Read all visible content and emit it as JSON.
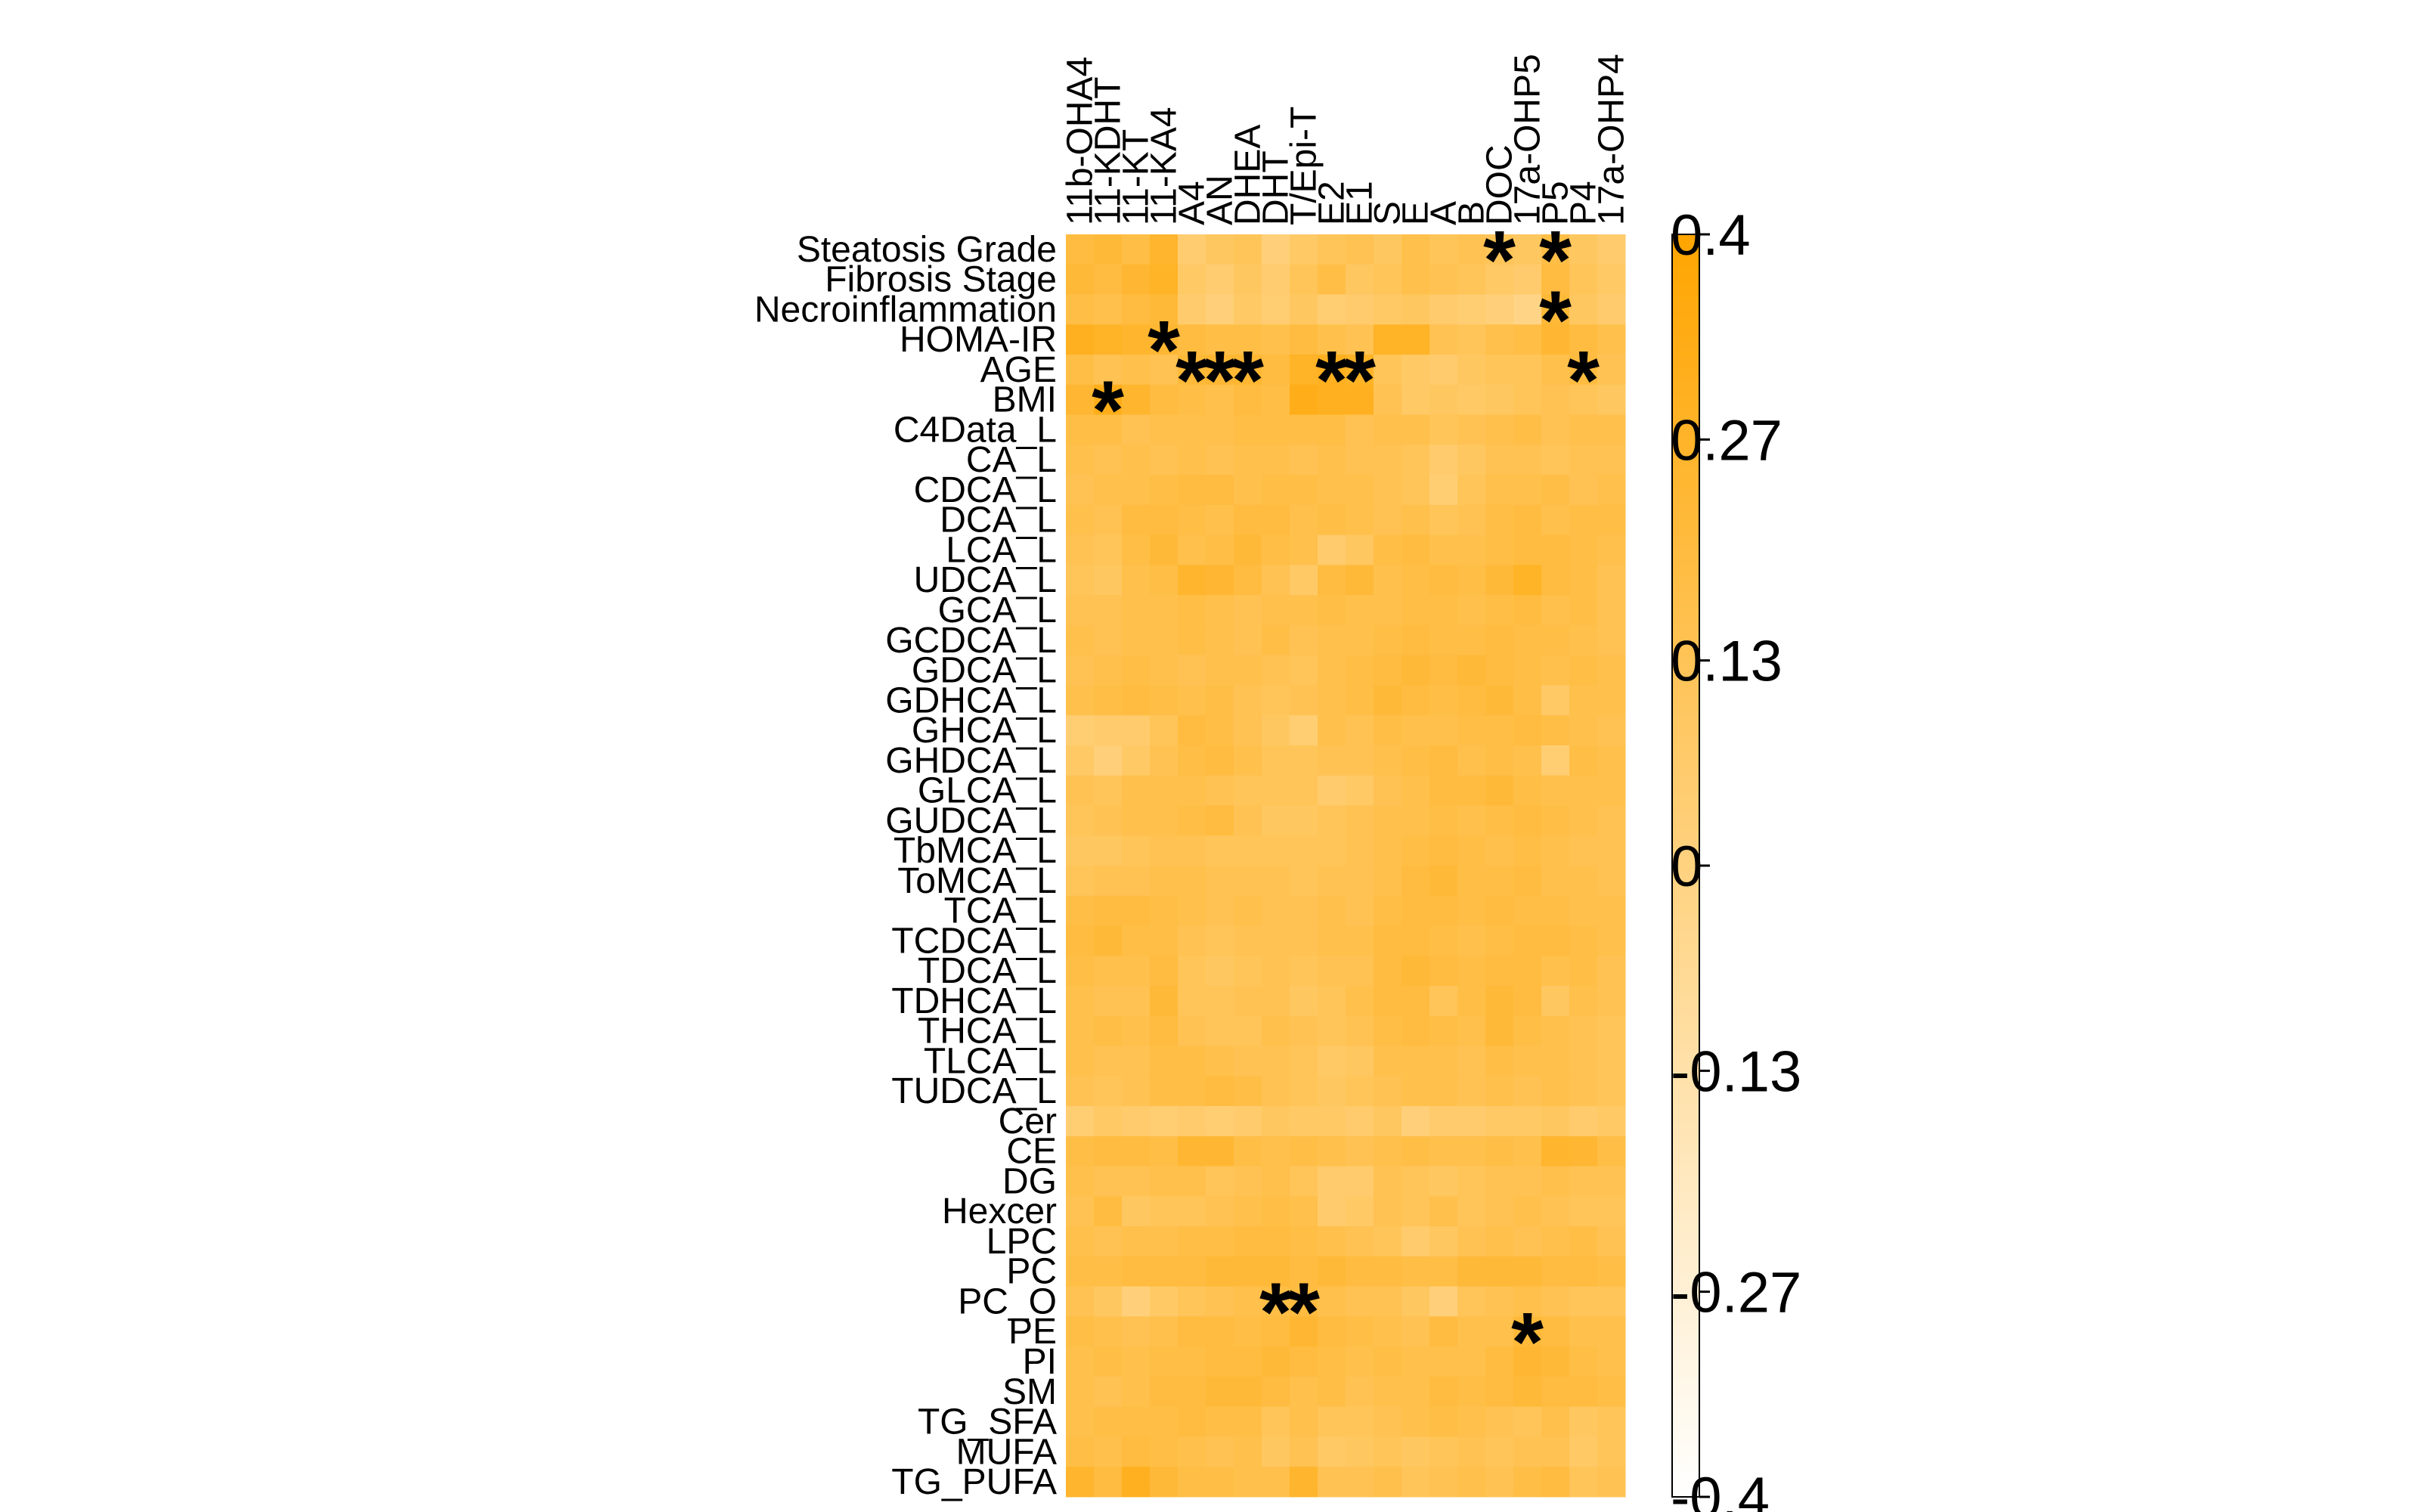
{
  "chart_data": {
    "type": "heatmap",
    "title": "",
    "rows": [
      "Steatosis Grade",
      "Fibrosis Stage",
      "Necroinflammation",
      "HOMA-IR",
      "AGE",
      "BMI",
      "C4Data_L",
      "CA_L",
      "CDCA_L",
      "DCA_L",
      "LCA_L",
      "UDCA_L",
      "GCA_L",
      "GCDCA_L",
      "GDCA_L",
      "GDHCA_L",
      "GHCA_L",
      "GHDCA_L",
      "GLCA_L",
      "GUDCA_L",
      "TbMCA_L",
      "ToMCA_L",
      "TCA_L",
      "TCDCA_L",
      "TDCA_L",
      "TDHCA_L",
      "THCA_L",
      "TLCA_L",
      "TUDCA_L",
      "Cer",
      "CE",
      "DG",
      "Hexcer",
      "LPC",
      "PC",
      "PC_O",
      "PE",
      "PI",
      "SM",
      "TG_SFA",
      "MUFA",
      "TG_PUFA"
    ],
    "columns": [
      "11b-OHA4",
      "11-KDHT",
      "11-KT",
      "11-KA4",
      "A4",
      "AN",
      "DHEA",
      "DHT",
      "T/Epi-T",
      "E2",
      "E1",
      "S",
      "E",
      "A",
      "B",
      "DOC",
      "17a-OHP5",
      "P5",
      "P4",
      "17a-OHP4"
    ],
    "values": [
      [
        0.2,
        0.22,
        0.18,
        0.26,
        0.05,
        0.1,
        0.12,
        0.02,
        0.08,
        0.12,
        0.14,
        0.1,
        0.16,
        0.12,
        0.14,
        0.12,
        0.1,
        0.18,
        0.1,
        0.06
      ],
      [
        0.22,
        0.2,
        0.24,
        0.28,
        0.08,
        0.05,
        0.1,
        0.05,
        0.12,
        0.18,
        0.1,
        0.12,
        0.16,
        0.14,
        0.12,
        0.08,
        0.06,
        0.2,
        0.12,
        0.08
      ],
      [
        0.18,
        0.16,
        0.2,
        0.22,
        0.06,
        0.02,
        0.08,
        0.04,
        0.1,
        0.04,
        0.06,
        0.08,
        0.1,
        0.06,
        0.04,
        0.02,
        -0.02,
        0.22,
        0.1,
        0.06
      ],
      [
        0.3,
        0.28,
        0.26,
        0.24,
        0.2,
        0.18,
        0.18,
        0.16,
        0.2,
        0.16,
        0.14,
        0.28,
        0.28,
        0.14,
        0.12,
        0.16,
        0.18,
        0.24,
        0.2,
        0.16
      ],
      [
        0.18,
        0.14,
        0.16,
        0.14,
        0.22,
        0.24,
        0.24,
        0.2,
        0.28,
        0.3,
        0.28,
        0.12,
        0.08,
        0.06,
        0.1,
        0.12,
        0.12,
        0.16,
        0.2,
        0.14
      ],
      [
        0.24,
        0.32,
        0.26,
        0.2,
        0.18,
        0.16,
        0.2,
        0.18,
        0.32,
        0.3,
        0.3,
        0.14,
        0.08,
        0.1,
        0.08,
        0.1,
        0.12,
        0.14,
        0.12,
        0.1
      ],
      [
        0.18,
        0.18,
        0.14,
        0.16,
        0.16,
        0.16,
        0.18,
        0.18,
        0.18,
        0.18,
        0.14,
        0.16,
        0.16,
        0.12,
        0.14,
        0.16,
        0.18,
        0.14,
        0.16,
        0.16
      ],
      [
        0.16,
        0.14,
        0.16,
        0.14,
        0.16,
        0.14,
        0.16,
        0.16,
        0.14,
        0.16,
        0.14,
        0.14,
        0.12,
        0.06,
        0.1,
        0.14,
        0.14,
        0.12,
        0.14,
        0.14
      ],
      [
        0.14,
        0.16,
        0.16,
        0.18,
        0.2,
        0.2,
        0.16,
        0.18,
        0.18,
        0.16,
        0.16,
        0.14,
        0.12,
        0.04,
        0.12,
        0.16,
        0.16,
        0.18,
        0.14,
        0.16
      ],
      [
        0.16,
        0.14,
        0.2,
        0.2,
        0.18,
        0.16,
        0.2,
        0.2,
        0.16,
        0.18,
        0.16,
        0.14,
        0.16,
        0.12,
        0.14,
        0.18,
        0.2,
        0.16,
        0.18,
        0.18
      ],
      [
        0.14,
        0.12,
        0.18,
        0.22,
        0.16,
        0.18,
        0.22,
        0.18,
        0.16,
        0.06,
        0.1,
        0.18,
        0.2,
        0.16,
        0.16,
        0.18,
        0.2,
        0.2,
        0.18,
        0.16
      ],
      [
        0.12,
        0.1,
        0.16,
        0.18,
        0.26,
        0.24,
        0.2,
        0.14,
        0.08,
        0.2,
        0.22,
        0.16,
        0.18,
        0.2,
        0.18,
        0.22,
        0.28,
        0.2,
        0.18,
        0.14
      ],
      [
        0.14,
        0.14,
        0.16,
        0.16,
        0.18,
        0.16,
        0.14,
        0.16,
        0.16,
        0.18,
        0.16,
        0.16,
        0.18,
        0.18,
        0.16,
        0.18,
        0.2,
        0.16,
        0.18,
        0.14
      ],
      [
        0.16,
        0.14,
        0.16,
        0.16,
        0.18,
        0.16,
        0.14,
        0.18,
        0.14,
        0.16,
        0.16,
        0.18,
        0.2,
        0.18,
        0.18,
        0.2,
        0.18,
        0.18,
        0.16,
        0.14
      ],
      [
        0.14,
        0.16,
        0.18,
        0.16,
        0.14,
        0.16,
        0.16,
        0.14,
        0.12,
        0.16,
        0.18,
        0.2,
        0.22,
        0.2,
        0.22,
        0.2,
        0.18,
        0.16,
        0.18,
        0.16
      ],
      [
        0.16,
        0.18,
        0.2,
        0.18,
        0.16,
        0.18,
        0.14,
        0.12,
        0.14,
        0.16,
        0.18,
        0.22,
        0.2,
        0.18,
        0.2,
        0.22,
        0.18,
        0.08,
        0.16,
        0.16
      ],
      [
        0.04,
        0.06,
        0.06,
        0.12,
        0.2,
        0.18,
        0.14,
        0.1,
        0.04,
        0.16,
        0.14,
        0.18,
        0.16,
        0.16,
        0.18,
        0.18,
        0.2,
        0.18,
        0.16,
        0.14
      ],
      [
        0.08,
        0.02,
        0.08,
        0.14,
        0.18,
        0.2,
        0.16,
        0.12,
        0.12,
        0.14,
        0.14,
        0.16,
        0.18,
        0.2,
        0.16,
        0.18,
        0.16,
        0.04,
        0.18,
        0.16
      ],
      [
        0.14,
        0.12,
        0.16,
        0.16,
        0.16,
        0.14,
        0.12,
        0.12,
        0.12,
        0.06,
        0.08,
        0.14,
        0.16,
        0.2,
        0.2,
        0.22,
        0.18,
        0.16,
        0.16,
        0.16
      ],
      [
        0.12,
        0.14,
        0.16,
        0.16,
        0.18,
        0.2,
        0.14,
        0.1,
        0.1,
        0.12,
        0.14,
        0.16,
        0.16,
        0.18,
        0.16,
        0.18,
        0.2,
        0.18,
        0.16,
        0.14
      ],
      [
        0.1,
        0.1,
        0.12,
        0.14,
        0.14,
        0.12,
        0.12,
        0.12,
        0.12,
        0.12,
        0.14,
        0.16,
        0.18,
        0.2,
        0.18,
        0.16,
        0.18,
        0.16,
        0.14,
        0.14
      ],
      [
        0.12,
        0.14,
        0.14,
        0.16,
        0.16,
        0.14,
        0.14,
        0.14,
        0.12,
        0.14,
        0.14,
        0.16,
        0.2,
        0.22,
        0.18,
        0.18,
        0.2,
        0.16,
        0.16,
        0.14
      ],
      [
        0.18,
        0.2,
        0.2,
        0.18,
        0.16,
        0.14,
        0.16,
        0.14,
        0.14,
        0.16,
        0.14,
        0.18,
        0.2,
        0.2,
        0.18,
        0.2,
        0.18,
        0.18,
        0.16,
        0.16
      ],
      [
        0.2,
        0.22,
        0.18,
        0.18,
        0.14,
        0.12,
        0.14,
        0.14,
        0.14,
        0.16,
        0.16,
        0.2,
        0.2,
        0.18,
        0.16,
        0.18,
        0.2,
        0.2,
        0.18,
        0.16
      ],
      [
        0.18,
        0.16,
        0.16,
        0.2,
        0.12,
        0.1,
        0.12,
        0.14,
        0.12,
        0.14,
        0.14,
        0.2,
        0.22,
        0.2,
        0.18,
        0.2,
        0.2,
        0.16,
        0.18,
        0.14
      ],
      [
        0.16,
        0.14,
        0.14,
        0.22,
        0.12,
        0.12,
        0.14,
        0.14,
        0.1,
        0.12,
        0.16,
        0.2,
        0.2,
        0.12,
        0.18,
        0.22,
        0.2,
        0.1,
        0.16,
        0.14
      ],
      [
        0.16,
        0.18,
        0.16,
        0.2,
        0.14,
        0.12,
        0.12,
        0.16,
        0.14,
        0.12,
        0.14,
        0.18,
        0.2,
        0.18,
        0.16,
        0.22,
        0.18,
        0.16,
        0.14,
        0.12
      ],
      [
        0.16,
        0.14,
        0.14,
        0.18,
        0.18,
        0.16,
        0.14,
        0.14,
        0.12,
        0.08,
        0.1,
        0.16,
        0.16,
        0.16,
        0.14,
        0.18,
        0.16,
        0.16,
        0.14,
        0.12
      ],
      [
        0.14,
        0.12,
        0.14,
        0.18,
        0.18,
        0.2,
        0.18,
        0.14,
        0.12,
        0.1,
        0.12,
        0.14,
        0.16,
        0.16,
        0.14,
        0.16,
        0.14,
        0.16,
        0.14,
        0.12
      ],
      [
        0.04,
        0.08,
        0.06,
        0.04,
        0.06,
        0.04,
        0.06,
        0.1,
        0.08,
        0.08,
        0.06,
        0.1,
        0.02,
        0.06,
        0.06,
        0.08,
        0.08,
        0.1,
        0.06,
        0.08
      ],
      [
        0.18,
        0.2,
        0.2,
        0.18,
        0.24,
        0.24,
        0.18,
        0.16,
        0.18,
        0.16,
        0.14,
        0.16,
        0.18,
        0.16,
        0.16,
        0.18,
        0.16,
        0.26,
        0.24,
        0.18
      ],
      [
        0.16,
        0.14,
        0.14,
        0.16,
        0.16,
        0.12,
        0.14,
        0.16,
        0.12,
        0.06,
        0.06,
        0.14,
        0.12,
        0.1,
        0.12,
        0.14,
        0.14,
        0.16,
        0.14,
        0.14
      ],
      [
        0.14,
        0.2,
        0.1,
        0.12,
        0.12,
        0.14,
        0.16,
        0.18,
        0.16,
        0.06,
        0.08,
        0.14,
        0.12,
        0.16,
        0.12,
        0.14,
        0.16,
        0.14,
        0.12,
        0.12
      ],
      [
        0.16,
        0.14,
        0.16,
        0.16,
        0.18,
        0.18,
        0.2,
        0.2,
        0.18,
        0.16,
        0.14,
        0.12,
        0.06,
        0.1,
        0.14,
        0.16,
        0.14,
        0.16,
        0.18,
        0.14
      ],
      [
        0.18,
        0.18,
        0.2,
        0.2,
        0.2,
        0.22,
        0.22,
        0.22,
        0.2,
        0.22,
        0.2,
        0.2,
        0.18,
        0.18,
        0.22,
        0.22,
        0.22,
        0.2,
        0.2,
        0.18
      ],
      [
        0.14,
        0.1,
        0.02,
        0.08,
        0.12,
        0.14,
        0.16,
        0.18,
        0.2,
        0.16,
        0.14,
        0.14,
        0.1,
        0.02,
        0.12,
        0.14,
        0.16,
        0.14,
        0.12,
        0.12
      ],
      [
        0.18,
        0.16,
        0.14,
        0.16,
        0.2,
        0.2,
        0.18,
        0.2,
        0.24,
        0.2,
        0.18,
        0.16,
        0.14,
        0.2,
        0.16,
        0.16,
        0.22,
        0.2,
        0.16,
        0.16
      ],
      [
        0.16,
        0.18,
        0.16,
        0.18,
        0.18,
        0.2,
        0.2,
        0.22,
        0.2,
        0.18,
        0.16,
        0.18,
        0.16,
        0.16,
        0.16,
        0.2,
        0.24,
        0.22,
        0.18,
        0.16
      ],
      [
        0.16,
        0.14,
        0.16,
        0.2,
        0.2,
        0.22,
        0.22,
        0.2,
        0.16,
        0.18,
        0.14,
        0.16,
        0.16,
        0.2,
        0.18,
        0.2,
        0.22,
        0.2,
        0.2,
        0.18
      ],
      [
        0.16,
        0.18,
        0.18,
        0.18,
        0.2,
        0.18,
        0.18,
        0.12,
        0.16,
        0.12,
        0.12,
        0.14,
        0.16,
        0.18,
        0.16,
        0.14,
        0.12,
        0.16,
        0.1,
        0.12
      ],
      [
        0.18,
        0.16,
        0.2,
        0.18,
        0.16,
        0.14,
        0.16,
        0.1,
        0.14,
        0.08,
        0.1,
        0.12,
        0.1,
        0.12,
        0.14,
        0.12,
        0.14,
        0.14,
        0.08,
        0.12
      ],
      [
        0.26,
        0.2,
        0.3,
        0.22,
        0.18,
        0.18,
        0.16,
        0.16,
        0.26,
        0.14,
        0.14,
        0.16,
        0.12,
        0.14,
        0.16,
        0.14,
        0.18,
        0.2,
        0.12,
        0.14
      ]
    ],
    "significance": [
      {
        "row": "Steatosis Grade",
        "column": "DOC",
        "label": "*"
      },
      {
        "row": "Steatosis Grade",
        "column": "P5",
        "label": "*"
      },
      {
        "row": "Necroinflammation",
        "column": "P5",
        "label": "*"
      },
      {
        "row": "HOMA-IR",
        "column": "11-KA4",
        "label": "*"
      },
      {
        "row": "AGE",
        "column": "A4",
        "label": "*"
      },
      {
        "row": "AGE",
        "column": "AN",
        "label": "*"
      },
      {
        "row": "AGE",
        "column": "DHEA",
        "label": "*"
      },
      {
        "row": "AGE",
        "column": "E2",
        "label": "*"
      },
      {
        "row": "AGE",
        "column": "E1",
        "label": "*"
      },
      {
        "row": "AGE",
        "column": "P4",
        "label": "*"
      },
      {
        "row": "BMI",
        "column": "11-KDHT",
        "label": "*"
      },
      {
        "row": "PC_O",
        "column": "DHT",
        "label": "*"
      },
      {
        "row": "PC_O",
        "column": "T/Epi-T",
        "label": "*"
      },
      {
        "row": "PE",
        "column": "17a-OHP5",
        "label": "*"
      }
    ],
    "scale": {
      "min": -0.4,
      "max": 0.4,
      "ticks": [
        "0.4",
        "0.27",
        "0.13",
        "0",
        "-0.13",
        "-0.27",
        "-0.4"
      ],
      "low_color": "#ffffff",
      "high_color": "#ffa500"
    },
    "legend_position": "right"
  }
}
